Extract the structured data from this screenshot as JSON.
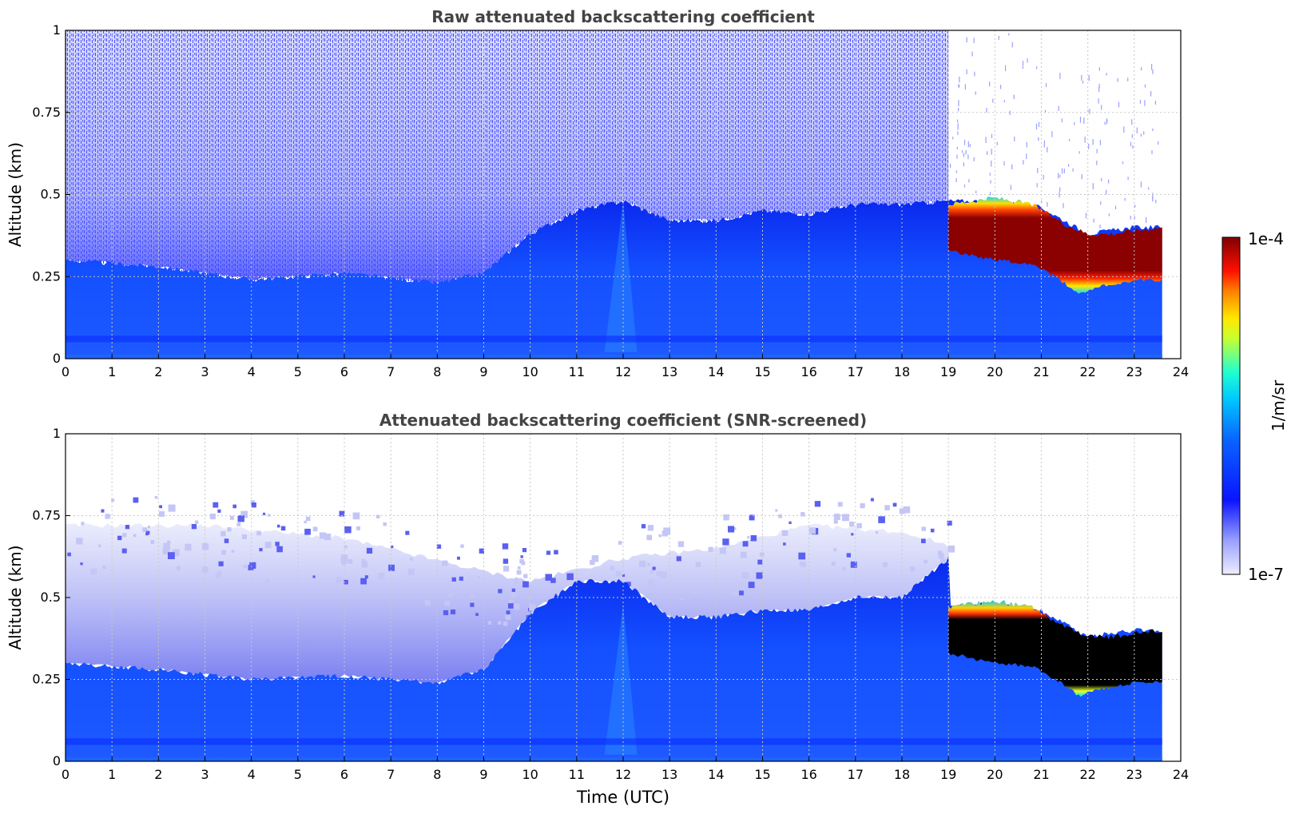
{
  "colors": {
    "background": "#ffffff",
    "grid": "#c8c8c8",
    "title": "#444444",
    "axis": "#000000",
    "jet_low": "#e8e8ff",
    "jet_mid": "#0a32ff",
    "jet_high": "#7f0000",
    "saturated": "#000000"
  },
  "colorbar": {
    "label": "1/m/sr",
    "max_label": "1e-4",
    "min_label": "1e-7",
    "scale": "log",
    "range": [
      1e-07,
      0.0001
    ],
    "colormap": "jet"
  },
  "chart_data": [
    {
      "type": "heatmap",
      "title": "Raw attenuated backscattering coefficient",
      "xlabel": "",
      "ylabel": "Altitude (km)",
      "xlim": [
        0,
        24
      ],
      "ylim": [
        0,
        1
      ],
      "xticks": [
        "0",
        "1",
        "2",
        "3",
        "4",
        "5",
        "6",
        "7",
        "8",
        "9",
        "10",
        "11",
        "12",
        "13",
        "14",
        "15",
        "16",
        "17",
        "18",
        "19",
        "20",
        "21",
        "22",
        "23",
        "24"
      ],
      "yticks": [
        "0",
        "0.25",
        "0.5",
        "0.75",
        "1"
      ],
      "grid": true,
      "data_end_time": 23.6,
      "boundary_layer_top_km": [
        [
          0,
          0.3
        ],
        [
          2,
          0.28
        ],
        [
          4,
          0.24
        ],
        [
          6,
          0.26
        ],
        [
          8,
          0.23
        ],
        [
          9,
          0.26
        ],
        [
          10,
          0.38
        ],
        [
          11,
          0.45
        ],
        [
          12,
          0.48
        ],
        [
          13,
          0.42
        ],
        [
          14,
          0.42
        ],
        [
          15,
          0.45
        ],
        [
          16,
          0.44
        ],
        [
          17,
          0.47
        ],
        [
          18,
          0.47
        ],
        [
          19,
          0.48
        ],
        [
          20,
          0.48
        ],
        [
          21,
          0.46
        ],
        [
          22,
          0.38
        ],
        [
          23,
          0.4
        ],
        [
          23.6,
          0.4
        ]
      ],
      "noise_top_km": 1.0,
      "noise_end_time": 19.0,
      "cloud_layer": {
        "start_time": 19.0,
        "end_time": 23.6,
        "top_km": [
          [
            19,
            0.47
          ],
          [
            20,
            0.49
          ],
          [
            20.8,
            0.47
          ],
          [
            21.5,
            0.41
          ],
          [
            22,
            0.38
          ],
          [
            22.5,
            0.38
          ],
          [
            23,
            0.39
          ],
          [
            23.6,
            0.4
          ]
        ],
        "bottom_km": [
          [
            19,
            0.33
          ],
          [
            20,
            0.3
          ],
          [
            20.8,
            0.29
          ],
          [
            21.3,
            0.25
          ],
          [
            21.8,
            0.2
          ],
          [
            22.3,
            0.22
          ],
          [
            23,
            0.24
          ],
          [
            23.6,
            0.24
          ]
        ]
      }
    },
    {
      "type": "heatmap",
      "title": "Attenuated backscattering coefficient (SNR-screened)",
      "xlabel": "Time (UTC)",
      "ylabel": "Altitude (km)",
      "xlim": [
        0,
        24
      ],
      "ylim": [
        0,
        1
      ],
      "xticks": [
        "0",
        "1",
        "2",
        "3",
        "4",
        "5",
        "6",
        "7",
        "8",
        "9",
        "10",
        "11",
        "12",
        "13",
        "14",
        "15",
        "16",
        "17",
        "18",
        "19",
        "20",
        "21",
        "22",
        "23",
        "24"
      ],
      "yticks": [
        "0",
        "0.25",
        "0.5",
        "0.75",
        "1"
      ],
      "grid": true,
      "data_end_time": 23.6,
      "boundary_layer_top_km": [
        [
          0,
          0.3
        ],
        [
          2,
          0.28
        ],
        [
          4,
          0.25
        ],
        [
          6,
          0.26
        ],
        [
          8,
          0.24
        ],
        [
          9,
          0.28
        ],
        [
          10,
          0.45
        ],
        [
          11,
          0.55
        ],
        [
          12,
          0.55
        ],
        [
          13,
          0.44
        ],
        [
          14,
          0.44
        ],
        [
          15,
          0.46
        ],
        [
          16,
          0.46
        ],
        [
          17,
          0.5
        ],
        [
          18,
          0.5
        ],
        [
          19,
          0.62
        ],
        [
          19.05,
          0.48
        ],
        [
          20,
          0.48
        ],
        [
          21,
          0.46
        ],
        [
          22,
          0.38
        ],
        [
          23,
          0.4
        ],
        [
          23.6,
          0.4
        ]
      ],
      "faint_layer_top_km": [
        [
          0,
          0.72
        ],
        [
          3,
          0.72
        ],
        [
          6,
          0.68
        ],
        [
          9,
          0.58
        ],
        [
          10,
          0.55
        ],
        [
          12,
          0.62
        ],
        [
          14,
          0.65
        ],
        [
          16,
          0.72
        ],
        [
          18,
          0.7
        ],
        [
          19,
          0.66
        ]
      ],
      "cloud_layer": {
        "start_time": 19.0,
        "end_time": 23.6,
        "top_km": [
          [
            19,
            0.47
          ],
          [
            20,
            0.49
          ],
          [
            20.8,
            0.47
          ],
          [
            21.5,
            0.41
          ],
          [
            22,
            0.38
          ],
          [
            22.5,
            0.38
          ],
          [
            23,
            0.39
          ],
          [
            23.6,
            0.4
          ]
        ],
        "bottom_km": [
          [
            19,
            0.33
          ],
          [
            20,
            0.3
          ],
          [
            20.8,
            0.29
          ],
          [
            21.3,
            0.25
          ],
          [
            21.8,
            0.2
          ],
          [
            22.3,
            0.22
          ],
          [
            23,
            0.24
          ],
          [
            23.6,
            0.24
          ]
        ]
      }
    }
  ]
}
